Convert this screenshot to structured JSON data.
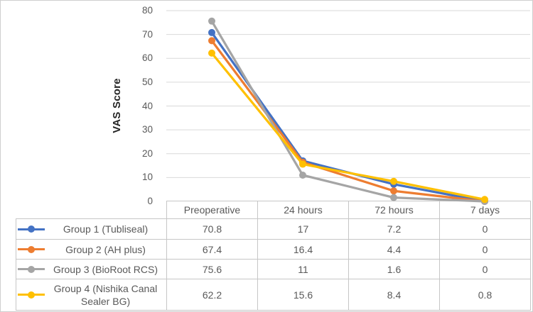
{
  "figure": {
    "background": "#ffffff",
    "border_color": "#cfcfcf"
  },
  "chart_data": {
    "type": "line",
    "title": "",
    "xlabel": "",
    "ylabel": "VAS Score",
    "categories": [
      "Preoperative",
      "24 hours",
      "72 hours",
      "7 days"
    ],
    "series": [
      {
        "name": "Group 1 (Tubliseal)",
        "color": "#4472C4",
        "values": [
          70.8,
          17,
          7.2,
          0
        ]
      },
      {
        "name": "Group 2 (AH plus)",
        "color": "#ED7D31",
        "values": [
          67.4,
          16.4,
          4.4,
          0
        ]
      },
      {
        "name": "Group 3 (BioRoot RCS)",
        "color": "#A5A5A5",
        "values": [
          75.6,
          11,
          1.6,
          0
        ]
      },
      {
        "name": "Group 4 (Nishika Canal Sealer BG)",
        "color": "#FFC000",
        "values": [
          62.2,
          15.6,
          8.4,
          0.8
        ]
      }
    ],
    "ylim": [
      0,
      80
    ],
    "ytick_step": 10,
    "grid": true,
    "gridline_color": "#D9D9D9",
    "table_border_color": "#c6c6c6",
    "text_color": "#595959",
    "axis_title_color": "#262626",
    "legend_position": "data-table-left-column",
    "show_data_table": true
  }
}
